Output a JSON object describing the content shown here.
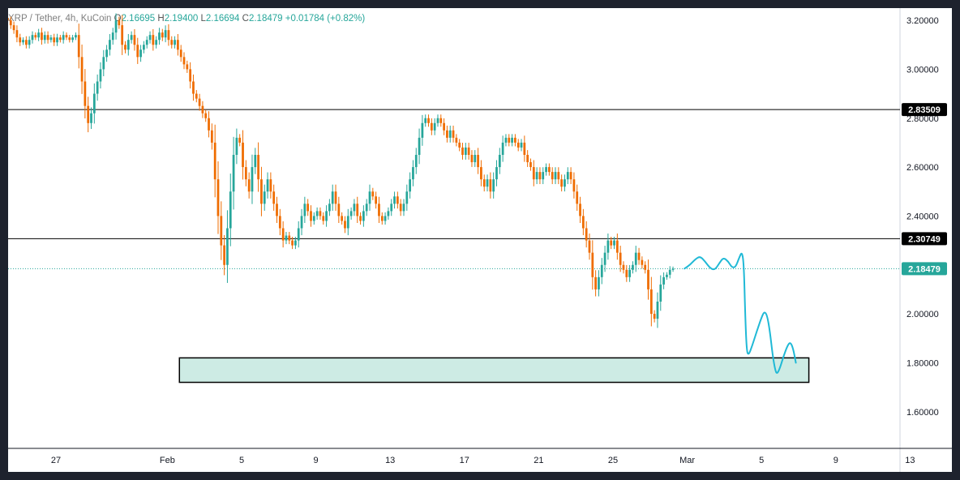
{
  "header": {
    "symbol": "XRP / Tether, 4h, KuCoin",
    "open_label": "O",
    "open": "2.16695",
    "high_label": "H",
    "high": "2.19400",
    "low_label": "L",
    "low": "2.16694",
    "close_label": "C",
    "close": "2.18479",
    "change": "+0.01784 (+0.82%)"
  },
  "colors": {
    "up": "#26a69a",
    "down": "#ef6c00",
    "zone_fill": "#cdebe4",
    "projection": "#20b9d6",
    "price_tag": "#26a69a",
    "level_tag": "#000000"
  },
  "chart_data": {
    "type": "candlestick",
    "title": "",
    "xlabel": "",
    "ylabel": "",
    "ylim": [
      1.45,
      3.25
    ],
    "x_ticks": [
      "27",
      "Feb",
      "5",
      "9",
      "13",
      "17",
      "21",
      "25",
      "Mar",
      "5",
      "9",
      "13"
    ],
    "x_tick_index": [
      0,
      6,
      10,
      14,
      18,
      22,
      26,
      30,
      34,
      38,
      42,
      46
    ],
    "y_ticks": [
      "1.60000",
      "1.80000",
      "2.00000",
      "2.20000",
      "2.40000",
      "2.60000",
      "2.80000",
      "3.00000",
      "3.20000"
    ],
    "y_tick_values": [
      1.6,
      1.8,
      2.0,
      2.2,
      2.4,
      2.6,
      2.8,
      3.0,
      3.2
    ],
    "start_index": -2.6,
    "bars_per_day": 6,
    "horizontal_levels": [
      {
        "value": 2.83509,
        "label": "2.83509"
      },
      {
        "value": 2.30749,
        "label": "2.30749"
      }
    ],
    "last_price": {
      "value": 2.18479,
      "label": "2.18479"
    },
    "support_zone": {
      "x_from": 6.65,
      "x_to": 40.55,
      "y_low": 1.72,
      "y_high": 1.82
    },
    "closes": [
      3.2,
      3.18,
      3.16,
      3.13,
      3.11,
      3.12,
      3.1,
      3.12,
      3.14,
      3.13,
      3.15,
      3.12,
      3.14,
      3.12,
      3.13,
      3.11,
      3.13,
      3.12,
      3.14,
      3.13,
      3.12,
      3.13,
      3.14,
      3.05,
      2.95,
      2.85,
      2.78,
      2.82,
      2.9,
      2.95,
      3.0,
      3.05,
      3.08,
      3.12,
      3.15,
      3.2,
      3.18,
      3.1,
      3.08,
      3.12,
      3.14,
      3.1,
      3.05,
      3.08,
      3.1,
      3.12,
      3.14,
      3.1,
      3.12,
      3.15,
      3.13,
      3.16,
      3.12,
      3.1,
      3.12,
      3.08,
      3.05,
      3.02,
      3.0,
      2.95,
      2.9,
      2.88,
      2.85,
      2.82,
      2.8,
      2.75,
      2.7,
      2.55,
      2.4,
      2.28,
      2.2,
      2.35,
      2.5,
      2.65,
      2.72,
      2.7,
      2.6,
      2.55,
      2.5,
      2.6,
      2.65,
      2.55,
      2.45,
      2.5,
      2.55,
      2.5,
      2.45,
      2.4,
      2.35,
      2.3,
      2.32,
      2.3,
      2.28,
      2.3,
      2.35,
      2.4,
      2.45,
      2.42,
      2.38,
      2.4,
      2.42,
      2.4,
      2.38,
      2.42,
      2.45,
      2.5,
      2.45,
      2.4,
      2.38,
      2.35,
      2.4,
      2.42,
      2.45,
      2.4,
      2.38,
      2.42,
      2.45,
      2.5,
      2.48,
      2.45,
      2.4,
      2.38,
      2.4,
      2.42,
      2.45,
      2.48,
      2.45,
      2.42,
      2.45,
      2.5,
      2.55,
      2.6,
      2.65,
      2.72,
      2.78,
      2.8,
      2.78,
      2.75,
      2.78,
      2.8,
      2.78,
      2.75,
      2.72,
      2.75,
      2.72,
      2.7,
      2.68,
      2.65,
      2.68,
      2.65,
      2.62,
      2.65,
      2.6,
      2.55,
      2.52,
      2.55,
      2.5,
      2.55,
      2.6,
      2.65,
      2.7,
      2.72,
      2.7,
      2.72,
      2.7,
      2.68,
      2.7,
      2.65,
      2.62,
      2.6,
      2.55,
      2.58,
      2.55,
      2.58,
      2.6,
      2.58,
      2.55,
      2.58,
      2.55,
      2.52,
      2.55,
      2.58,
      2.55,
      2.5,
      2.45,
      2.4,
      2.35,
      2.3,
      2.25,
      2.15,
      2.1,
      2.15,
      2.2,
      2.25,
      2.3,
      2.28,
      2.3,
      2.25,
      2.2,
      2.18,
      2.15,
      2.18,
      2.2,
      2.25,
      2.22,
      2.2,
      2.18,
      2.1,
      2.0,
      1.98,
      2.05,
      2.12,
      2.15,
      2.16,
      2.18,
      2.185
    ],
    "projection": [
      [
        33.85,
        2.185
      ],
      [
        34.15,
        2.2
      ],
      [
        34.45,
        2.225
      ],
      [
        34.7,
        2.235
      ],
      [
        34.95,
        2.215
      ],
      [
        35.25,
        2.185
      ],
      [
        35.5,
        2.18
      ],
      [
        35.75,
        2.21
      ],
      [
        35.95,
        2.23
      ],
      [
        36.2,
        2.215
      ],
      [
        36.4,
        2.19
      ],
      [
        36.6,
        2.19
      ],
      [
        36.8,
        2.23
      ],
      [
        36.95,
        2.255
      ],
      [
        37.05,
        2.2
      ],
      [
        37.12,
        2.0
      ],
      [
        37.2,
        1.85
      ],
      [
        37.3,
        1.83
      ],
      [
        37.5,
        1.87
      ],
      [
        37.75,
        1.93
      ],
      [
        38.0,
        1.985
      ],
      [
        38.15,
        2.01
      ],
      [
        38.3,
        1.995
      ],
      [
        38.45,
        1.93
      ],
      [
        38.6,
        1.83
      ],
      [
        38.75,
        1.765
      ],
      [
        38.85,
        1.755
      ],
      [
        39.0,
        1.78
      ],
      [
        39.2,
        1.83
      ],
      [
        39.4,
        1.87
      ],
      [
        39.55,
        1.885
      ],
      [
        39.7,
        1.86
      ],
      [
        39.85,
        1.8
      ]
    ]
  }
}
